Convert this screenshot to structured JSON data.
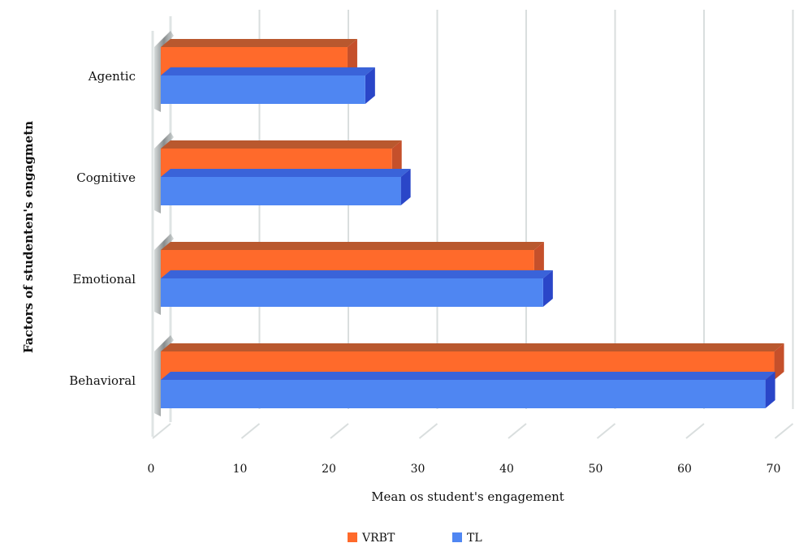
{
  "chart_data": {
    "type": "bar",
    "orientation": "horizontal",
    "style": "3d",
    "title": "",
    "xlabel": "Mean os student's engagement",
    "ylabel": "Factors of studenten's engagmetn",
    "categories": [
      "Agentic",
      "Cognitive",
      "Emotional",
      "Behavioral"
    ],
    "xlim": [
      0,
      70
    ],
    "xticks": [
      0,
      10,
      20,
      30,
      40,
      50,
      60,
      70
    ],
    "grid": true,
    "legend_position": "bottom",
    "series": [
      {
        "name": "VRBT",
        "values": [
          21,
          26,
          42,
          69
        ],
        "color": "#ff6a2b",
        "side_color": "#c5502b",
        "top_color": "#b9582e"
      },
      {
        "name": "TL",
        "values": [
          23,
          27,
          43,
          68
        ],
        "color": "#4f86f2",
        "side_color": "#2a46c8",
        "top_color": "#3a63d9"
      }
    ]
  }
}
